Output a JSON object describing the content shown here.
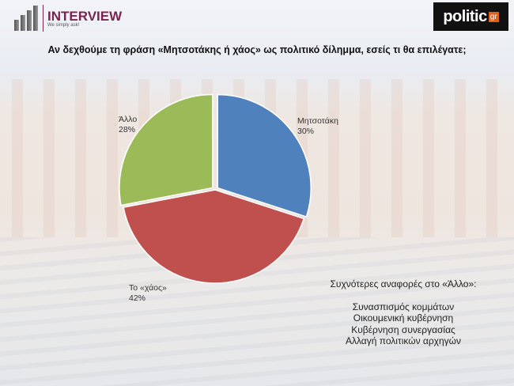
{
  "header": {
    "brand": "INTERVIEW",
    "tagline": "We simply ask!",
    "partner": "politic",
    "partner_suffix": "gr"
  },
  "chart_data": {
    "type": "pie",
    "title": "Αν δεχθούμε τη φράση «Μητσοτάκης ή χάος» ως πολιτικό δίλημμα, εσείς τι θα επιλέγατε;",
    "slices": [
      {
        "label": "Μητσοτάκη",
        "value": 30,
        "value_label": "30%",
        "color": "#4f81bd"
      },
      {
        "label": "Το «χάος»",
        "value": 42,
        "value_label": "42%",
        "color": "#c0504d"
      },
      {
        "label": "Άλλο",
        "value": 28,
        "value_label": "28%",
        "color": "#9bbb59"
      }
    ]
  },
  "notes": {
    "heading": "Συχνότερες αναφορές στο «Άλλο»:",
    "items": [
      "Συνασπισμός κομμάτων",
      "Οικουμενική κυβέρνηση",
      "Κυβέρνηση συνεργασίας",
      "Αλλαγή πολιτικών αρχηγών"
    ]
  }
}
